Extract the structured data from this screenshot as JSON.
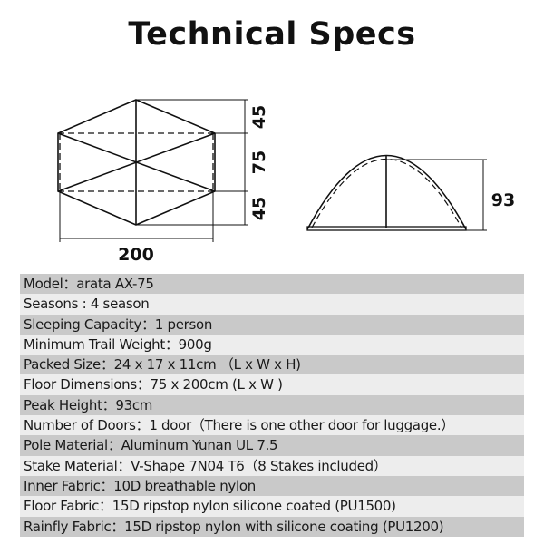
{
  "title": "Technical Specs",
  "diagram": {
    "top_view": {
      "length": "200",
      "side_top": "45",
      "middle": "75",
      "side_bottom": "45"
    },
    "side_view": {
      "height": "93"
    }
  },
  "specs": [
    "Model：arata AX-75",
    "Seasons : 4 season",
    "Sleeping Capacity：1 person",
    "Minimum Trail Weight：900g",
    "Packed Size：24 x 17 x 11cm （L x W x H)",
    "Floor Dimensions：75 x 200cm (L x W )",
    "Peak Height：93cm",
    "Number of Doors：1 door（There is one other door for luggage.）",
    "Pole Material：Aluminum Yunan UL 7.5",
    "Stake Material：V-Shape 7N04 T6（8 Stakes included）",
    "Inner Fabric：10D breathable nylon",
    "Floor Fabric：15D ripstop nylon silicone coated (PU1500)",
    "Rainfly Fabric：15D ripstop nylon with silicone coating (PU1200)"
  ]
}
